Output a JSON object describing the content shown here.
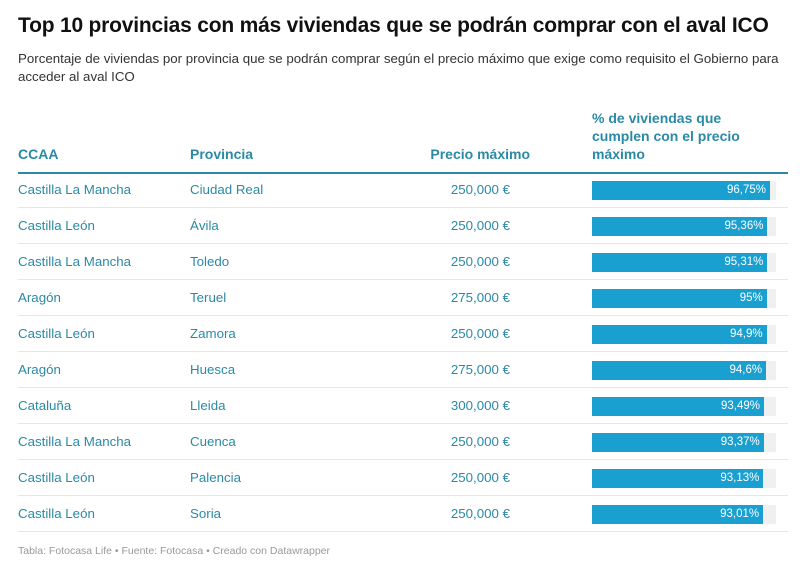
{
  "title": "Top 10 provincias con más viviendas que se podrán comprar con el aval ICO",
  "subtitle": "Porcentaje de viviendas por provincia que se podrán comprar según el precio máximo que exige como requisito el Gobierno para acceder al aval ICO",
  "columns": [
    "CCAA",
    "Provincia",
    "Precio máximo",
    "% de viviendas que cumplen con el precio máximo"
  ],
  "bar_color": "#1a9fd1",
  "text_color": "#2a8aa6",
  "rows": [
    {
      "ccaa": "Castilla La Mancha",
      "provincia": "Ciudad Real",
      "precio": "250,000 €",
      "pct": 96.75,
      "pct_label": "96,75%"
    },
    {
      "ccaa": "Castilla León",
      "provincia": "Ávila",
      "precio": "250,000 €",
      "pct": 95.36,
      "pct_label": "95,36%"
    },
    {
      "ccaa": "Castilla La Mancha",
      "provincia": "Toledo",
      "precio": "250,000 €",
      "pct": 95.31,
      "pct_label": "95,31%"
    },
    {
      "ccaa": "Aragón",
      "provincia": "Teruel",
      "precio": "275,000 €",
      "pct": 95,
      "pct_label": "95%"
    },
    {
      "ccaa": "Castilla León",
      "provincia": "Zamora",
      "precio": "250,000 €",
      "pct": 94.9,
      "pct_label": "94,9%"
    },
    {
      "ccaa": "Aragón",
      "provincia": "Huesca",
      "precio": "275,000 €",
      "pct": 94.6,
      "pct_label": "94,6%"
    },
    {
      "ccaa": "Cataluña",
      "provincia": "Lleida",
      "precio": "300,000 €",
      "pct": 93.49,
      "pct_label": "93,49%"
    },
    {
      "ccaa": "Castilla La Mancha",
      "provincia": "Cuenca",
      "precio": "250,000 €",
      "pct": 93.37,
      "pct_label": "93,37%"
    },
    {
      "ccaa": "Castilla León",
      "provincia": "Palencia",
      "precio": "250,000 €",
      "pct": 93.13,
      "pct_label": "93,13%"
    },
    {
      "ccaa": "Castilla León",
      "provincia": "Soria",
      "precio": "250,000 €",
      "pct": 93.01,
      "pct_label": "93,01%"
    }
  ],
  "footer": "Tabla: Fotocasa Life • Fuente: Fotocasa • Creado con Datawrapper"
}
